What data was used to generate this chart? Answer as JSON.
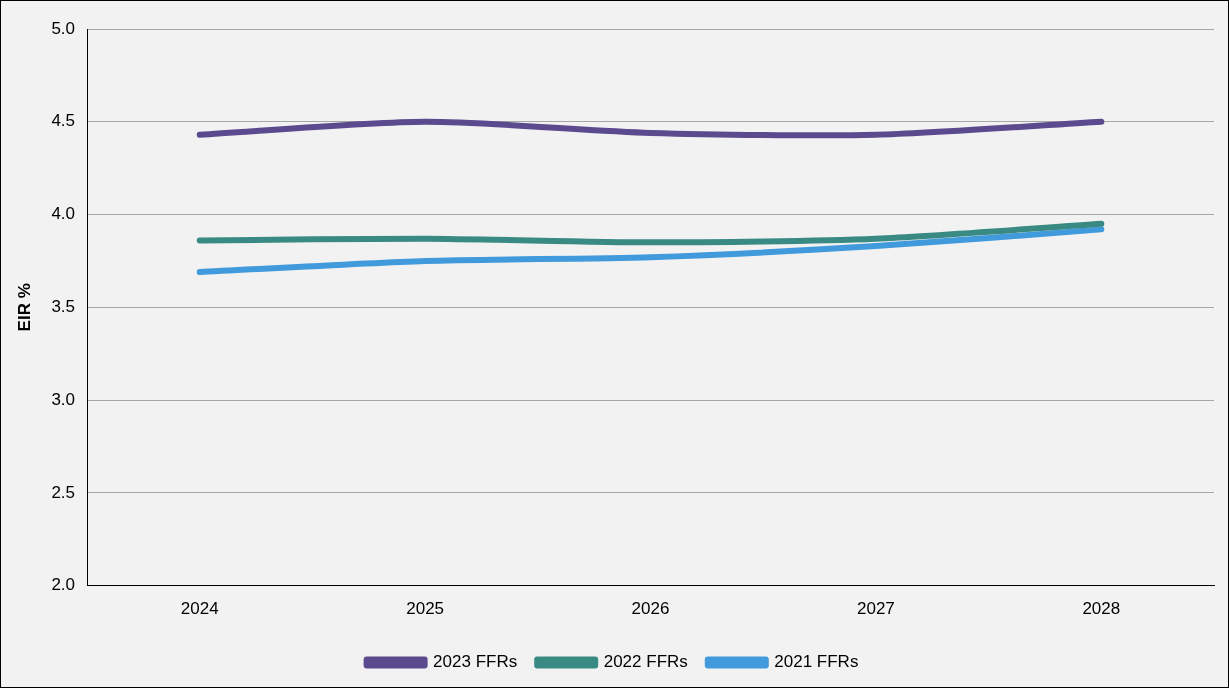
{
  "chart_data": {
    "type": "line",
    "ylabel": "EIR %",
    "categories": [
      "2024",
      "2025",
      "2026",
      "2027",
      "2028"
    ],
    "series": [
      {
        "name": "2023 FFRs",
        "color": "#5b4a8e",
        "values": [
          4.43,
          4.5,
          4.44,
          4.43,
          4.5
        ]
      },
      {
        "name": "2022 FFRs",
        "color": "#3a8a84",
        "values": [
          3.86,
          3.87,
          3.85,
          3.87,
          3.95
        ]
      },
      {
        "name": "2021 FFRs",
        "color": "#409adc",
        "values": [
          3.69,
          3.75,
          3.77,
          3.83,
          3.92
        ]
      }
    ],
    "ylim": [
      2.0,
      5.0
    ],
    "yticks": [
      {
        "value": 2,
        "label": "2.0"
      },
      {
        "value": 2.5,
        "label": "2.5"
      },
      {
        "value": 3,
        "label": "3.0"
      },
      {
        "value": 3.5,
        "label": "3.5"
      },
      {
        "value": 4,
        "label": "4.0"
      },
      {
        "value": 4.5,
        "label": "4.5"
      },
      {
        "value": 5,
        "label": "5.0"
      }
    ],
    "grid": "y",
    "legend": "bottom",
    "marker": "none",
    "line_style": "solid"
  }
}
